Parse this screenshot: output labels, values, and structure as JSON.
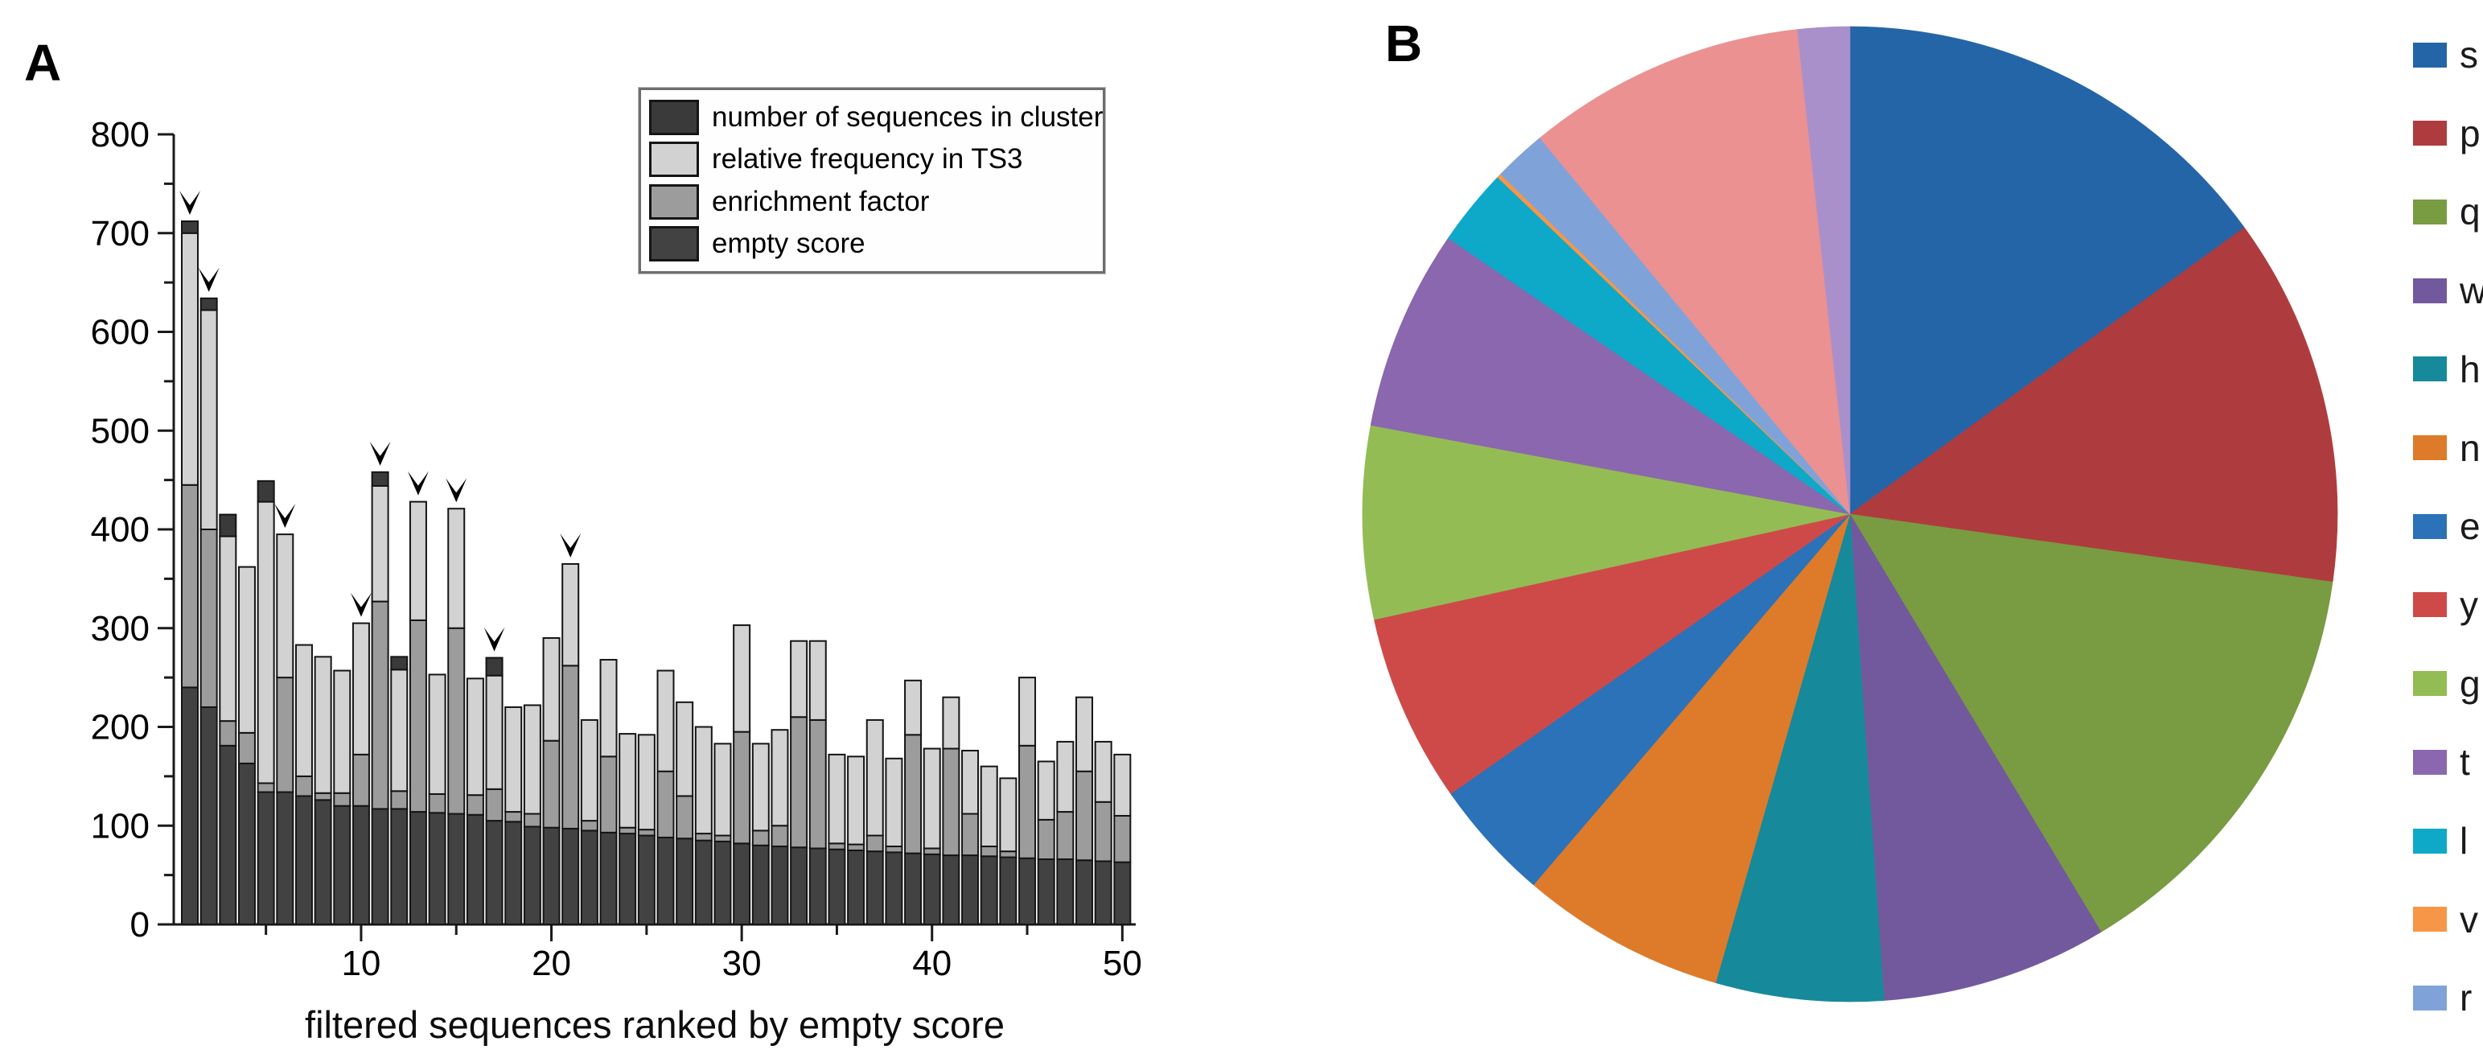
{
  "panelA": {
    "panel_label": "A",
    "x_axis": {
      "label": "filtered sequences ranked by empty score",
      "major_ticks": [
        10,
        20,
        30,
        40,
        50
      ],
      "minor_tick_step": 5,
      "range": [
        1,
        50
      ]
    },
    "y_axis": {
      "min": 0,
      "max": 800,
      "major_tick_step": 100,
      "minor_tick_step": 50,
      "tick_labels": [
        "0",
        "100",
        "200",
        "300",
        "400",
        "500",
        "600",
        "700",
        "800"
      ]
    },
    "legend": {
      "items": [
        {
          "label": "number of sequences in cluster",
          "color": "#3a3a3a"
        },
        {
          "label": "relative frequency in TS3",
          "color": "#d2d2d2"
        },
        {
          "label": "enrichment factor",
          "color": "#9c9c9c"
        },
        {
          "label": "empty score",
          "color": "#424242"
        }
      ]
    },
    "chart_data": {
      "type": "bar",
      "stacked": true,
      "xlabel": "filtered sequences ranked by empty score",
      "ylabel": "",
      "ylim": [
        0,
        800
      ],
      "x_range": [
        1,
        50
      ],
      "grid": false,
      "legend_position": "top-right-inside",
      "series": [
        {
          "name": "empty score",
          "color": "#424242",
          "stack_order": 1,
          "values": [
            240,
            220,
            181,
            163,
            134,
            134,
            130,
            126,
            120,
            120,
            117,
            117,
            114,
            113,
            112,
            111,
            105,
            104,
            99,
            98,
            97,
            95,
            93,
            92,
            90,
            88,
            87,
            85,
            84,
            82,
            80,
            79,
            78,
            77,
            76,
            75,
            74,
            73,
            72,
            71,
            70,
            70,
            69,
            68,
            67,
            66,
            66,
            65,
            64,
            63
          ]
        },
        {
          "name": "enrichment factor",
          "color": "#9c9c9c",
          "stack_order": 2,
          "values": [
            205,
            180,
            25,
            31,
            9,
            116,
            20,
            7,
            13,
            52,
            210,
            18,
            194,
            19,
            188,
            20,
            32,
            10,
            13,
            88,
            165,
            10,
            77,
            6,
            6,
            67,
            43,
            7,
            6,
            113,
            15,
            21,
            132,
            130,
            6,
            6,
            16,
            6,
            120,
            6,
            108,
            42,
            10,
            6,
            114,
            40,
            48,
            90,
            60,
            47
          ]
        },
        {
          "name": "relative frequency in TS3",
          "color": "#d2d2d2",
          "stack_order": 3,
          "values": [
            255,
            222,
            187,
            168,
            285,
            145,
            133,
            138,
            124,
            133,
            117,
            123,
            120,
            121,
            121,
            118,
            115,
            106,
            110,
            104,
            103,
            102,
            98,
            95,
            96,
            102,
            95,
            108,
            93,
            108,
            88,
            97,
            77,
            80,
            90,
            89,
            117,
            89,
            55,
            101,
            52,
            64,
            81,
            74,
            69,
            59,
            71,
            75,
            61,
            62
          ]
        },
        {
          "name": "number of sequences in cluster",
          "color": "#3a3a3a",
          "stack_order": 4,
          "values": [
            12,
            12,
            22,
            0,
            21,
            0,
            0,
            0,
            0,
            0,
            14,
            13,
            0,
            0,
            0,
            0,
            18,
            0,
            0,
            0,
            0,
            0,
            0,
            0,
            0,
            0,
            0,
            0,
            0,
            0,
            0,
            0,
            0,
            0,
            0,
            0,
            0,
            0,
            0,
            0,
            0,
            0,
            0,
            0,
            0,
            0,
            0,
            0,
            0,
            0
          ]
        }
      ],
      "bar_totals": [
        712,
        634,
        415,
        362,
        449,
        395,
        283,
        271,
        257,
        305,
        458,
        271,
        428,
        253,
        421,
        249,
        270,
        220,
        222,
        290,
        365,
        207,
        268,
        193,
        192,
        257,
        225,
        200,
        183,
        303,
        183,
        197,
        287,
        287,
        172,
        170,
        207,
        168,
        247,
        178,
        230,
        176,
        160,
        148,
        250,
        165,
        185,
        230,
        185,
        172
      ],
      "arrow_marked_ranks": [
        1,
        2,
        6,
        10,
        11,
        13,
        15,
        17,
        21
      ]
    }
  },
  "panelB": {
    "panel_label": "B",
    "chart_data": {
      "type": "pie",
      "start_angle_deg": 0,
      "direction": "clockwise",
      "legend_position": "right",
      "slices": [
        {
          "label": "s",
          "color": "#2465a8",
          "angle_deg": 54.0,
          "percent": 15.0
        },
        {
          "label": "p",
          "color": "#ae3c3e",
          "angle_deg": 44.0,
          "percent": 12.2
        },
        {
          "label": "q",
          "color": "#799b41",
          "angle_deg": 51.0,
          "percent": 14.2
        },
        {
          "label": "w",
          "color": "#72599e",
          "angle_deg": 27.0,
          "percent": 7.5
        },
        {
          "label": "h",
          "color": "#16899b",
          "angle_deg": 20.0,
          "percent": 5.6
        },
        {
          "label": "n",
          "color": "#dd7b2b",
          "angle_deg": 24.5,
          "percent": 6.8
        },
        {
          "label": "e",
          "color": "#2b72b8",
          "angle_deg": 14.5,
          "percent": 4.0
        },
        {
          "label": "y",
          "color": "#ce4a49",
          "angle_deg": 22.5,
          "percent": 6.3
        },
        {
          "label": "g",
          "color": "#94bc55",
          "angle_deg": 23.0,
          "percent": 6.4
        },
        {
          "label": "t",
          "color": "#8a67ae",
          "angle_deg": 24.0,
          "percent": 6.7
        },
        {
          "label": "l",
          "color": "#0ea9c8",
          "angle_deg": 9.2,
          "percent": 2.6
        },
        {
          "label": "v",
          "color": "#f79646",
          "angle_deg": 0.5,
          "percent": 0.1
        },
        {
          "label": "r",
          "color": "#7fa3d8",
          "angle_deg": 6.3,
          "percent": 1.8
        },
        {
          "label": "",
          "color": "#eb9191",
          "angle_deg": 33.3,
          "percent": 9.3
        },
        {
          "label": "",
          "color": "#a990cb",
          "angle_deg": 6.2,
          "percent": 1.7
        }
      ]
    },
    "legend": {
      "items": [
        {
          "label": "s",
          "color": "#2465a8"
        },
        {
          "label": "p",
          "color": "#ae3c3e"
        },
        {
          "label": "q",
          "color": "#799b41"
        },
        {
          "label": "w",
          "color": "#72599e"
        },
        {
          "label": "h",
          "color": "#16899b"
        },
        {
          "label": "n",
          "color": "#dd7b2b"
        },
        {
          "label": "e",
          "color": "#2b72b8"
        },
        {
          "label": "y",
          "color": "#ce4a49"
        },
        {
          "label": "g",
          "color": "#94bc55"
        },
        {
          "label": "t",
          "color": "#8a67ae"
        },
        {
          "label": "l",
          "color": "#0ea9c8"
        },
        {
          "label": "v",
          "color": "#f79646"
        },
        {
          "label": "r",
          "color": "#7fa3d8"
        }
      ]
    }
  }
}
